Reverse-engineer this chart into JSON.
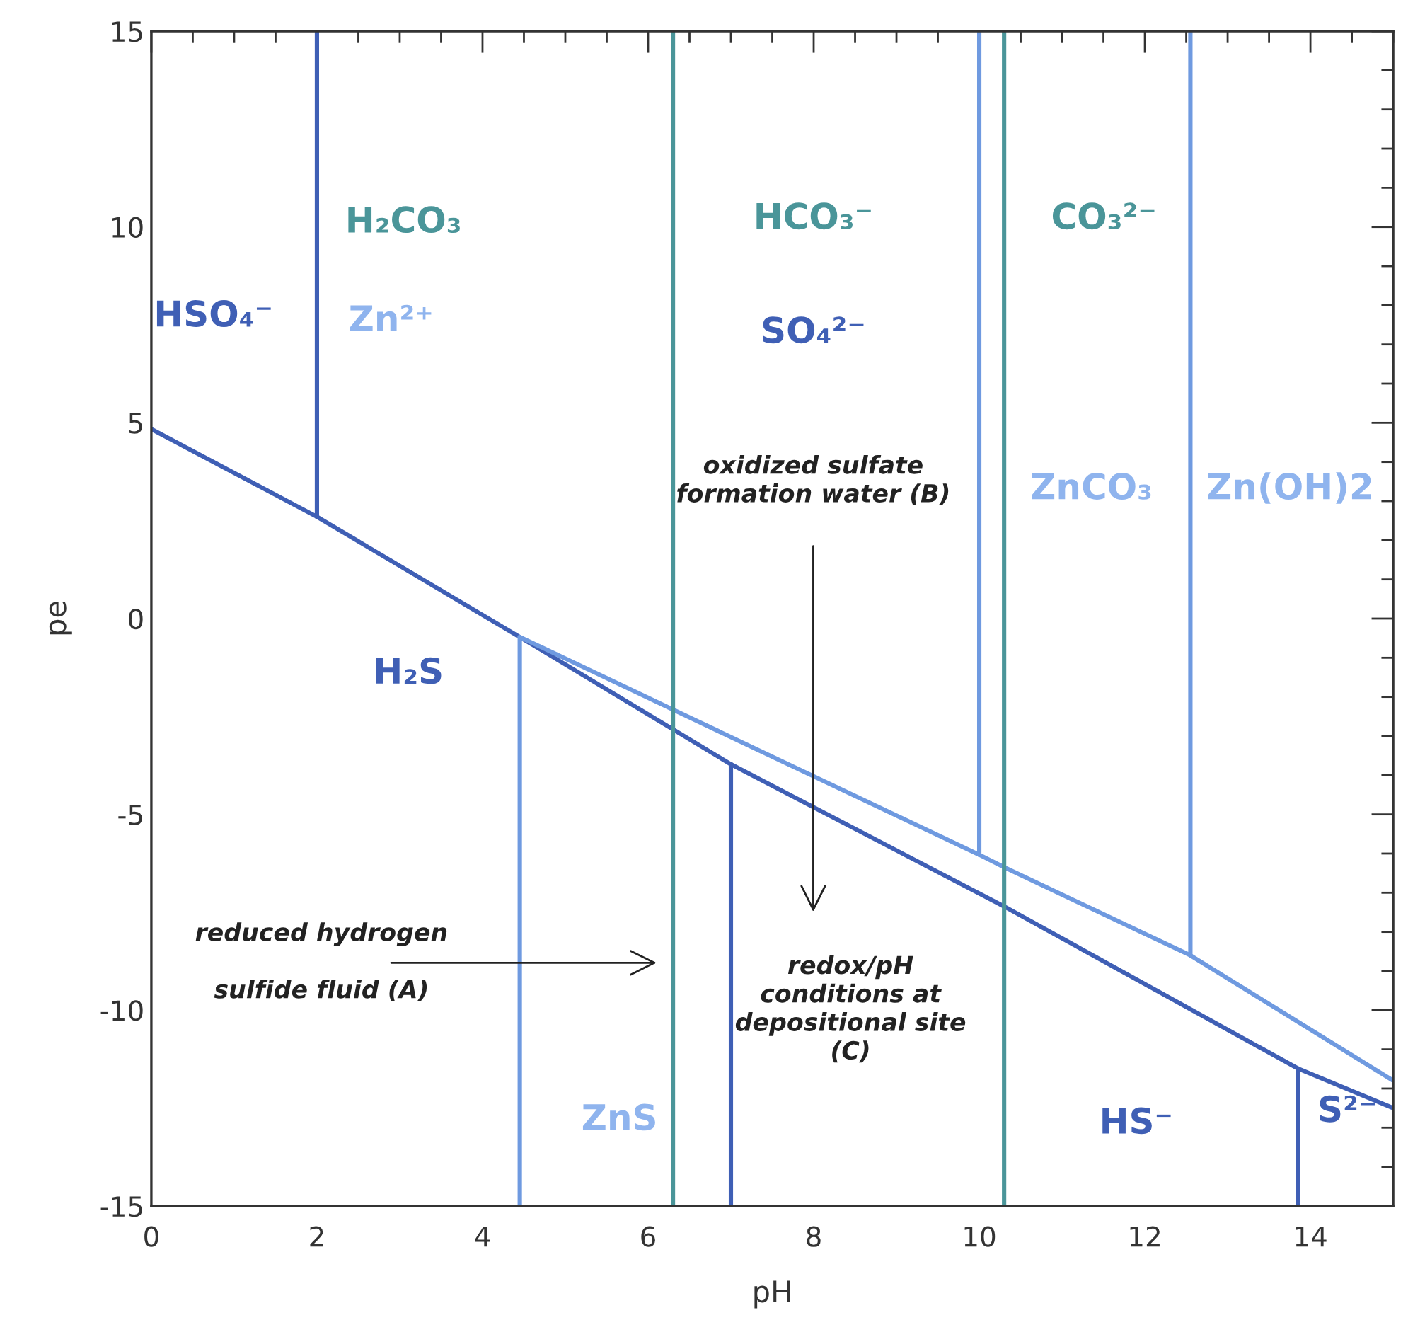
{
  "chart_data": {
    "type": "line",
    "xlabel": "pH",
    "ylabel": "pe",
    "xlim": [
      0,
      15
    ],
    "ylim": [
      -15,
      15
    ],
    "xticks": [
      0,
      2,
      4,
      6,
      8,
      10,
      12,
      14
    ],
    "yticks": [
      -15,
      -10,
      -5,
      0,
      5,
      10,
      15
    ],
    "grid": false,
    "legend": false,
    "marker": "none",
    "line_style": "solid",
    "series": [
      {
        "color": "#3f5fb5",
        "x": [
          0,
          2,
          4.45,
          7,
          10.3,
          13.85,
          15
        ],
        "values": [
          4.84,
          2.6,
          -0.47,
          -3.72,
          -7.35,
          -11.49,
          -12.5
        ]
      },
      {
        "color": "#6f9ae0",
        "x": [
          4.45,
          10,
          10.3,
          12.55,
          15
        ],
        "values": [
          -0.47,
          -6.03,
          -6.35,
          -8.6,
          -11.8
        ]
      },
      {
        "color": "#3f5fb5",
        "x": [
          2,
          2
        ],
        "values": [
          2.6,
          15
        ]
      },
      {
        "color": "#6f9ae0",
        "x": [
          4.45,
          4.45
        ],
        "values": [
          -15,
          -0.47
        ]
      },
      {
        "color": "#4a9599",
        "x": [
          6.3,
          6.3
        ],
        "values": [
          -15,
          15
        ]
      },
      {
        "color": "#3f5fb5",
        "x": [
          7,
          7
        ],
        "values": [
          -15,
          -3.72
        ]
      },
      {
        "color": "#6f9ae0",
        "x": [
          10,
          10
        ],
        "values": [
          -6.03,
          15
        ]
      },
      {
        "color": "#4a9599",
        "x": [
          10.3,
          10.3
        ],
        "values": [
          -15,
          15
        ]
      },
      {
        "color": "#6f9ae0",
        "x": [
          12.55,
          12.55
        ],
        "values": [
          -8.6,
          15
        ]
      },
      {
        "color": "#3f5fb5",
        "x": [
          13.85,
          13.85
        ],
        "values": [
          -15,
          -11.49
        ]
      }
    ],
    "annotations": [
      "HSO₄⁻",
      "H₂CO₃",
      "Zn²⁺",
      "HCO₃⁻",
      "CO₃²⁻",
      "SO₄²⁻",
      "ZnCO₃",
      "Zn(OH)2",
      "H₂S",
      "ZnS",
      "HS⁻",
      "S²⁻",
      "reduced hydrogen\n\nsulfide fluid (A)",
      "oxidized sulfate\nformation water (B)",
      "redox/pH\nconditions at\ndepositional site\n(C)"
    ]
  }
}
